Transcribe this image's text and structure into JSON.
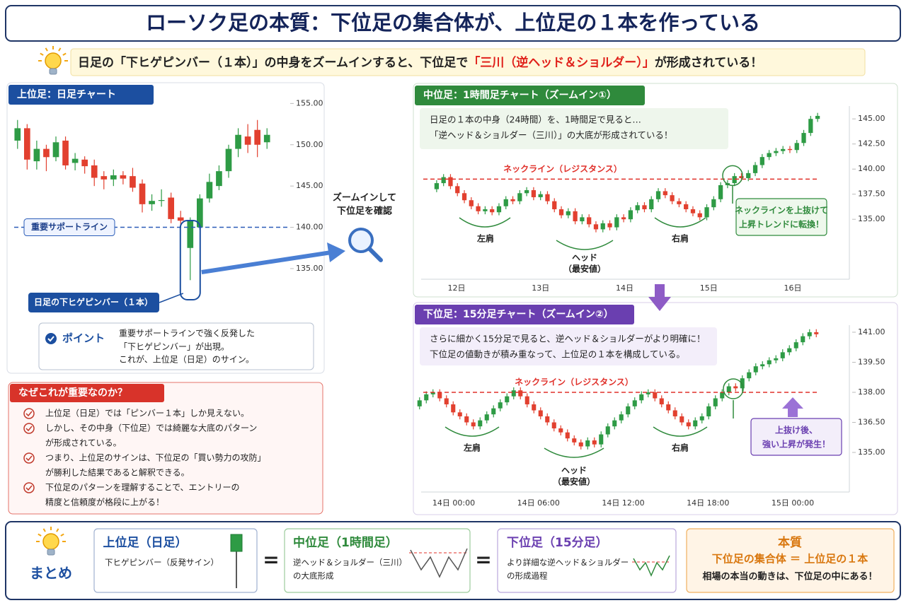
{
  "header": {
    "title": "ローソク足の本質：下位足の集合体が、上位足の１本を作っている",
    "lead_prefix": "日足の「下ヒゲピンバー（１本）」の中身をズームインすると、下位足で",
    "lead_highlight": "「三川（逆ヘッド＆ショルダー）」",
    "lead_suffix": "が形成されている！"
  },
  "zoom_label": [
    "ズームインして",
    "下位足を確認"
  ],
  "chart_data": [
    {
      "type": "candlestick",
      "title": "上位足：日足チャート",
      "up_color": "#2e9b45",
      "down_color": "#e2402f",
      "open": [
        150.5,
        152,
        148,
        149.5,
        148.5,
        150.5,
        147.8,
        148.2,
        147.5,
        146.2,
        145.8,
        146.3,
        146.2,
        145.3,
        142.8,
        143.2,
        143.6,
        141.2,
        137.5,
        140,
        143.5,
        145,
        146.8,
        149.5,
        151,
        151.8,
        150.3
      ],
      "high": [
        153,
        152.5,
        150.5,
        150,
        151,
        151,
        149,
        148.6,
        148.2,
        146.8,
        147,
        146.8,
        147.2,
        145.8,
        144,
        144.6,
        144.2,
        142,
        141.2,
        144,
        146.5,
        147.5,
        150,
        152,
        152.5,
        153,
        152
      ],
      "low": [
        149.5,
        147,
        147,
        146.8,
        148,
        147,
        146.9,
        146.5,
        145,
        144.6,
        145,
        145.2,
        144.3,
        141.8,
        142,
        142.5,
        140.5,
        140.2,
        133.6,
        139.7,
        143,
        144.5,
        146,
        148.5,
        149,
        148.5,
        149.5
      ],
      "close": [
        152,
        148.2,
        149.5,
        148.5,
        150.3,
        147.5,
        148.3,
        147.4,
        146,
        145.8,
        146.3,
        145.9,
        144.8,
        142.8,
        143.2,
        143.3,
        141,
        140.8,
        140.8,
        143.5,
        145.5,
        146.8,
        149.5,
        151.2,
        150,
        150,
        151.2
      ],
      "ylim": [
        132,
        157
      ],
      "yticks": [
        {
          "value": 135,
          "label": "135.00"
        },
        {
          "value": 140,
          "label": "140.00"
        },
        {
          "value": 145,
          "label": "145.00"
        },
        {
          "value": 150,
          "label": "150.00"
        },
        {
          "value": 155,
          "label": "155.00"
        }
      ],
      "support_level": 140,
      "support_label": "重要サポートライン",
      "pinbar_label": "日足の下ヒゲピンバー（１本）"
    },
    {
      "type": "candlestick",
      "title": "中位足：1時間足チャート（ズームイン①）",
      "up_color": "#2e9b45",
      "down_color": "#e2402f",
      "open": [
        138.0,
        138.6,
        139.2,
        138.3,
        137.6,
        136.9,
        136.3,
        135.8,
        136.0,
        135.7,
        136.3,
        137.0,
        136.8,
        137.6,
        137.9,
        137.2,
        137.5,
        136.8,
        136.0,
        135.4,
        135.8,
        134.8,
        135.2,
        134.5,
        134.0,
        134.6,
        134.2,
        135.2,
        135.0,
        135.9,
        136.4,
        136.0,
        137.0,
        137.8,
        137.4,
        136.8,
        136.5,
        136.0,
        135.6,
        135.2,
        136.2,
        137.0,
        138.4,
        138.6,
        139.3,
        139.1,
        139.6,
        140.4,
        141.2,
        141.6,
        141.8,
        142.0,
        141.9,
        142.6,
        143.6,
        145.0
      ],
      "high": [
        138.9,
        139.5,
        139.5,
        138.6,
        137.9,
        137.2,
        136.6,
        136.3,
        136.3,
        136.6,
        137.3,
        137.3,
        137.9,
        138.2,
        138.2,
        137.8,
        137.8,
        137.1,
        136.3,
        136.1,
        136.1,
        135.5,
        135.5,
        134.8,
        134.9,
        134.9,
        135.5,
        135.5,
        136.2,
        136.7,
        136.7,
        137.3,
        138.1,
        138.1,
        137.7,
        137.1,
        136.8,
        136.3,
        135.9,
        136.5,
        137.3,
        138.7,
        138.9,
        139.6,
        139.6,
        139.9,
        140.7,
        141.5,
        141.9,
        142.1,
        142.3,
        142.3,
        142.9,
        143.9,
        145.3,
        145.6
      ],
      "low": [
        137.7,
        138.3,
        138.0,
        137.3,
        136.6,
        136.0,
        135.5,
        135.5,
        135.4,
        135.4,
        136.0,
        136.5,
        136.5,
        137.3,
        136.9,
        136.9,
        136.5,
        135.7,
        135.1,
        135.1,
        134.5,
        134.5,
        134.2,
        133.7,
        133.7,
        133.9,
        133.9,
        134.7,
        134.7,
        135.6,
        135.7,
        135.7,
        136.7,
        137.1,
        136.5,
        136.2,
        135.7,
        135.3,
        134.9,
        134.9,
        135.9,
        136.7,
        138.1,
        138.3,
        138.8,
        138.8,
        139.3,
        140.1,
        140.9,
        141.3,
        141.5,
        141.6,
        141.6,
        142.3,
        143.3,
        144.7
      ],
      "close": [
        138.6,
        139.2,
        138.3,
        137.6,
        136.9,
        136.3,
        135.8,
        136.0,
        135.7,
        136.3,
        137.0,
        136.8,
        137.6,
        137.9,
        137.2,
        137.5,
        136.8,
        136.0,
        135.4,
        135.8,
        134.8,
        135.2,
        134.5,
        134.0,
        134.6,
        134.2,
        135.2,
        135.0,
        135.9,
        136.4,
        136.0,
        137.0,
        137.8,
        137.4,
        136.8,
        136.5,
        136.0,
        135.6,
        135.2,
        136.2,
        137.0,
        138.4,
        138.6,
        139.3,
        139.1,
        139.6,
        140.4,
        141.2,
        141.6,
        141.8,
        142.0,
        141.9,
        142.6,
        143.6,
        145.0,
        145.3
      ],
      "ylim": [
        129,
        147
      ],
      "yticks": [
        {
          "value": 135,
          "label": "135.00"
        },
        {
          "value": 137.5,
          "label": "137.50"
        },
        {
          "value": 140,
          "label": "140.00"
        },
        {
          "value": 142.5,
          "label": "142.50"
        },
        {
          "value": 145,
          "label": "145.00"
        }
      ],
      "x_labels": [
        "12日",
        "13日",
        "14日",
        "15日",
        "16日"
      ],
      "callout": [
        "日足の１本の中身（24時間）を、1時間足で見ると…",
        "「逆ヘッド＆ショルダー（三川）」の大底が形成されている！"
      ],
      "neckline": 139.0,
      "neckline_label": "ネックライン（レジスタンス）",
      "pattern_labels": {
        "left_shoulder": "左肩",
        "head": "ヘッド",
        "head_note": "（最安値）",
        "right_shoulder": "右肩"
      },
      "note": [
        "ネックラインを上抜けて",
        "上昇トレンドに転換！"
      ]
    },
    {
      "type": "candlestick",
      "title": "下位足：15分足チャート（ズームイン②）",
      "up_color": "#2e9b45",
      "down_color": "#e2402f",
      "open": [
        137.3,
        137.6,
        137.9,
        138.0,
        137.7,
        137.4,
        137.0,
        136.8,
        136.5,
        136.3,
        136.6,
        136.9,
        137.2,
        137.5,
        137.8,
        138.1,
        137.8,
        137.4,
        137.1,
        136.8,
        136.5,
        136.2,
        136.0,
        135.7,
        135.5,
        135.3,
        135.6,
        135.4,
        135.9,
        136.3,
        136.6,
        136.9,
        137.3,
        137.6,
        137.9,
        138.0,
        137.7,
        137.4,
        137.1,
        136.8,
        136.5,
        136.3,
        136.6,
        136.8,
        137.3,
        137.7,
        138.0,
        138.3,
        138.2,
        138.7,
        139.0,
        139.3,
        139.4,
        139.6,
        139.7,
        140.0,
        140.2,
        140.5,
        140.8,
        141.0
      ],
      "high": [
        137.75,
        138.05,
        138.15,
        138.15,
        137.85,
        137.55,
        137.15,
        136.95,
        136.65,
        136.75,
        137.05,
        137.35,
        137.65,
        137.95,
        138.25,
        138.25,
        137.95,
        137.55,
        137.25,
        136.95,
        136.65,
        136.35,
        136.15,
        135.85,
        135.65,
        135.75,
        135.75,
        136.05,
        136.45,
        136.75,
        137.05,
        137.45,
        137.75,
        138.05,
        138.15,
        138.15,
        137.85,
        137.55,
        137.25,
        136.95,
        136.65,
        136.75,
        136.95,
        137.45,
        137.85,
        138.15,
        138.45,
        138.45,
        138.85,
        139.15,
        139.45,
        139.55,
        139.75,
        139.85,
        140.15,
        140.35,
        140.65,
        140.95,
        141.15,
        141.15
      ],
      "low": [
        137.15,
        137.45,
        137.75,
        137.55,
        137.25,
        136.85,
        136.65,
        136.35,
        136.15,
        136.15,
        136.45,
        136.75,
        137.05,
        137.35,
        137.65,
        137.65,
        137.25,
        136.95,
        136.65,
        136.35,
        136.05,
        135.85,
        135.55,
        135.35,
        135.15,
        135.15,
        135.25,
        135.25,
        135.75,
        136.15,
        136.45,
        136.75,
        137.15,
        137.45,
        137.75,
        137.55,
        137.25,
        136.95,
        136.65,
        136.35,
        136.15,
        136.15,
        136.45,
        136.65,
        137.15,
        137.55,
        137.85,
        138.05,
        138.05,
        138.55,
        138.85,
        139.15,
        139.25,
        139.45,
        139.55,
        139.85,
        140.05,
        140.35,
        140.65,
        140.75
      ],
      "close": [
        137.6,
        137.9,
        138.0,
        137.7,
        137.4,
        137.0,
        136.8,
        136.5,
        136.3,
        136.6,
        136.9,
        137.2,
        137.5,
        137.8,
        138.1,
        137.8,
        137.4,
        137.1,
        136.8,
        136.5,
        136.2,
        136.0,
        135.7,
        135.5,
        135.3,
        135.6,
        135.4,
        135.9,
        136.3,
        136.6,
        136.9,
        137.3,
        137.6,
        137.9,
        138.0,
        137.7,
        137.4,
        137.1,
        136.8,
        136.5,
        136.3,
        136.6,
        136.8,
        137.3,
        137.7,
        138.0,
        138.3,
        138.2,
        138.7,
        139.0,
        139.3,
        139.4,
        139.6,
        139.7,
        140.0,
        140.2,
        140.5,
        140.8,
        141.0,
        140.9
      ],
      "ylim": [
        133.5,
        141.5
      ],
      "yticks": [
        {
          "value": 135,
          "label": "135.00"
        },
        {
          "value": 136.5,
          "label": "136.50"
        },
        {
          "value": 138,
          "label": "138.00"
        },
        {
          "value": 139.5,
          "label": "139.50"
        },
        {
          "value": 141,
          "label": "141.00"
        }
      ],
      "x_labels": [
        "14日 00:00",
        "14日 06:00",
        "14日 12:00",
        "14日 18:00",
        "15日 00:00"
      ],
      "callout": [
        "さらに細かく15分足で見ると、逆ヘッド＆ショルダーがより明確に！",
        "下位足の値動きが積み重なって、上位足の１本を構成している。"
      ],
      "neckline": 138.0,
      "neckline_label": "ネックライン（レジスタンス）",
      "pattern_labels": {
        "left_shoulder": "左肩",
        "head": "ヘッド",
        "head_note": "（最安値）",
        "right_shoulder": "右肩"
      },
      "note": [
        "上抜け後、",
        "強い上昇が発生！"
      ]
    }
  ],
  "point": {
    "title": "ポイント",
    "lines": [
      "重要サポートラインで強く反発した",
      "「下ヒゲピンバー」が出現。",
      "これが、上位足（日足）のサイン。"
    ]
  },
  "why": {
    "title": "なぜこれが重要なのか？",
    "items": [
      [
        "上位足（日足）では「ピンバー１本」しか見えない。"
      ],
      [
        "しかし、その中身（下位足）では綺麗な大底のパターン",
        "が形成されている。"
      ],
      [
        "つまり、上位足のサインは、下位足の「買い勢力の攻防」",
        "が勝利した結果であると解釈できる。"
      ],
      [
        "下位足のパターンを理解することで、エントリーの",
        "精度と信頼度が格段に上がる！"
      ]
    ]
  },
  "summary": {
    "title": "まとめ",
    "equals": "=",
    "cards": [
      {
        "title": "上位足（日足）",
        "lines": [
          "下ヒゲピンバー（反発サイン）"
        ]
      },
      {
        "title": "中位足（1時間足）",
        "lines": [
          "逆ヘッド＆ショルダー（三川）",
          "の大底形成"
        ]
      },
      {
        "title": "下位足（15分足）",
        "lines": [
          "より詳細な逆ヘッド＆ショルダー",
          "の形成過程"
        ]
      },
      {
        "title": "本質",
        "lines": [
          "下位足の集合体 ＝ 上位足の１本",
          "相場の本当の動きは、下位足の中にある！"
        ]
      }
    ]
  }
}
